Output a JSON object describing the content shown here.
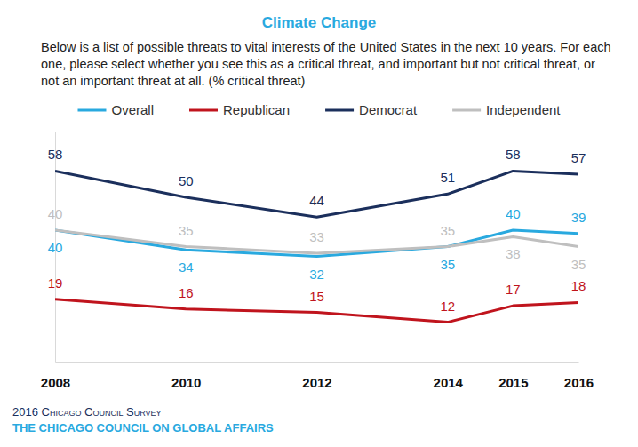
{
  "chart_data": {
    "type": "line",
    "title": "Climate Change",
    "subtitle": "Below is a list of possible threats to vital interests of the United States in the next 10 years. For each one, please select whether you see this as a critical threat, and important but not critical threat, or not an important threat at all. (% critical threat)",
    "x": [
      2008,
      2010,
      2012,
      2014,
      2015,
      2016
    ],
    "xlim": [
      2008,
      2016
    ],
    "xticks": [
      2008,
      2010,
      2012,
      2014,
      2015,
      2016
    ],
    "ylim": [
      0,
      70
    ],
    "tick_labels": "x",
    "grid": false,
    "legend": "top",
    "data_labels": true,
    "series": [
      {
        "name": "Overall",
        "color": "#29a9df",
        "values": [
          40,
          34,
          32,
          35,
          40,
          39
        ]
      },
      {
        "name": "Republican",
        "color": "#c0141d",
        "values": [
          19,
          16,
          15,
          12,
          17,
          18
        ]
      },
      {
        "name": "Democrat",
        "color": "#1b2f5c",
        "values": [
          58,
          50,
          44,
          51,
          58,
          57
        ]
      },
      {
        "name": "Independent",
        "color": "#bfbfbf",
        "values": [
          40,
          35,
          33,
          35,
          38,
          35
        ]
      }
    ],
    "annotations": [
      "2016 Chicago Council Survey",
      "THE CHICAGO COUNCIL ON GLOBAL AFFAIRS"
    ]
  }
}
